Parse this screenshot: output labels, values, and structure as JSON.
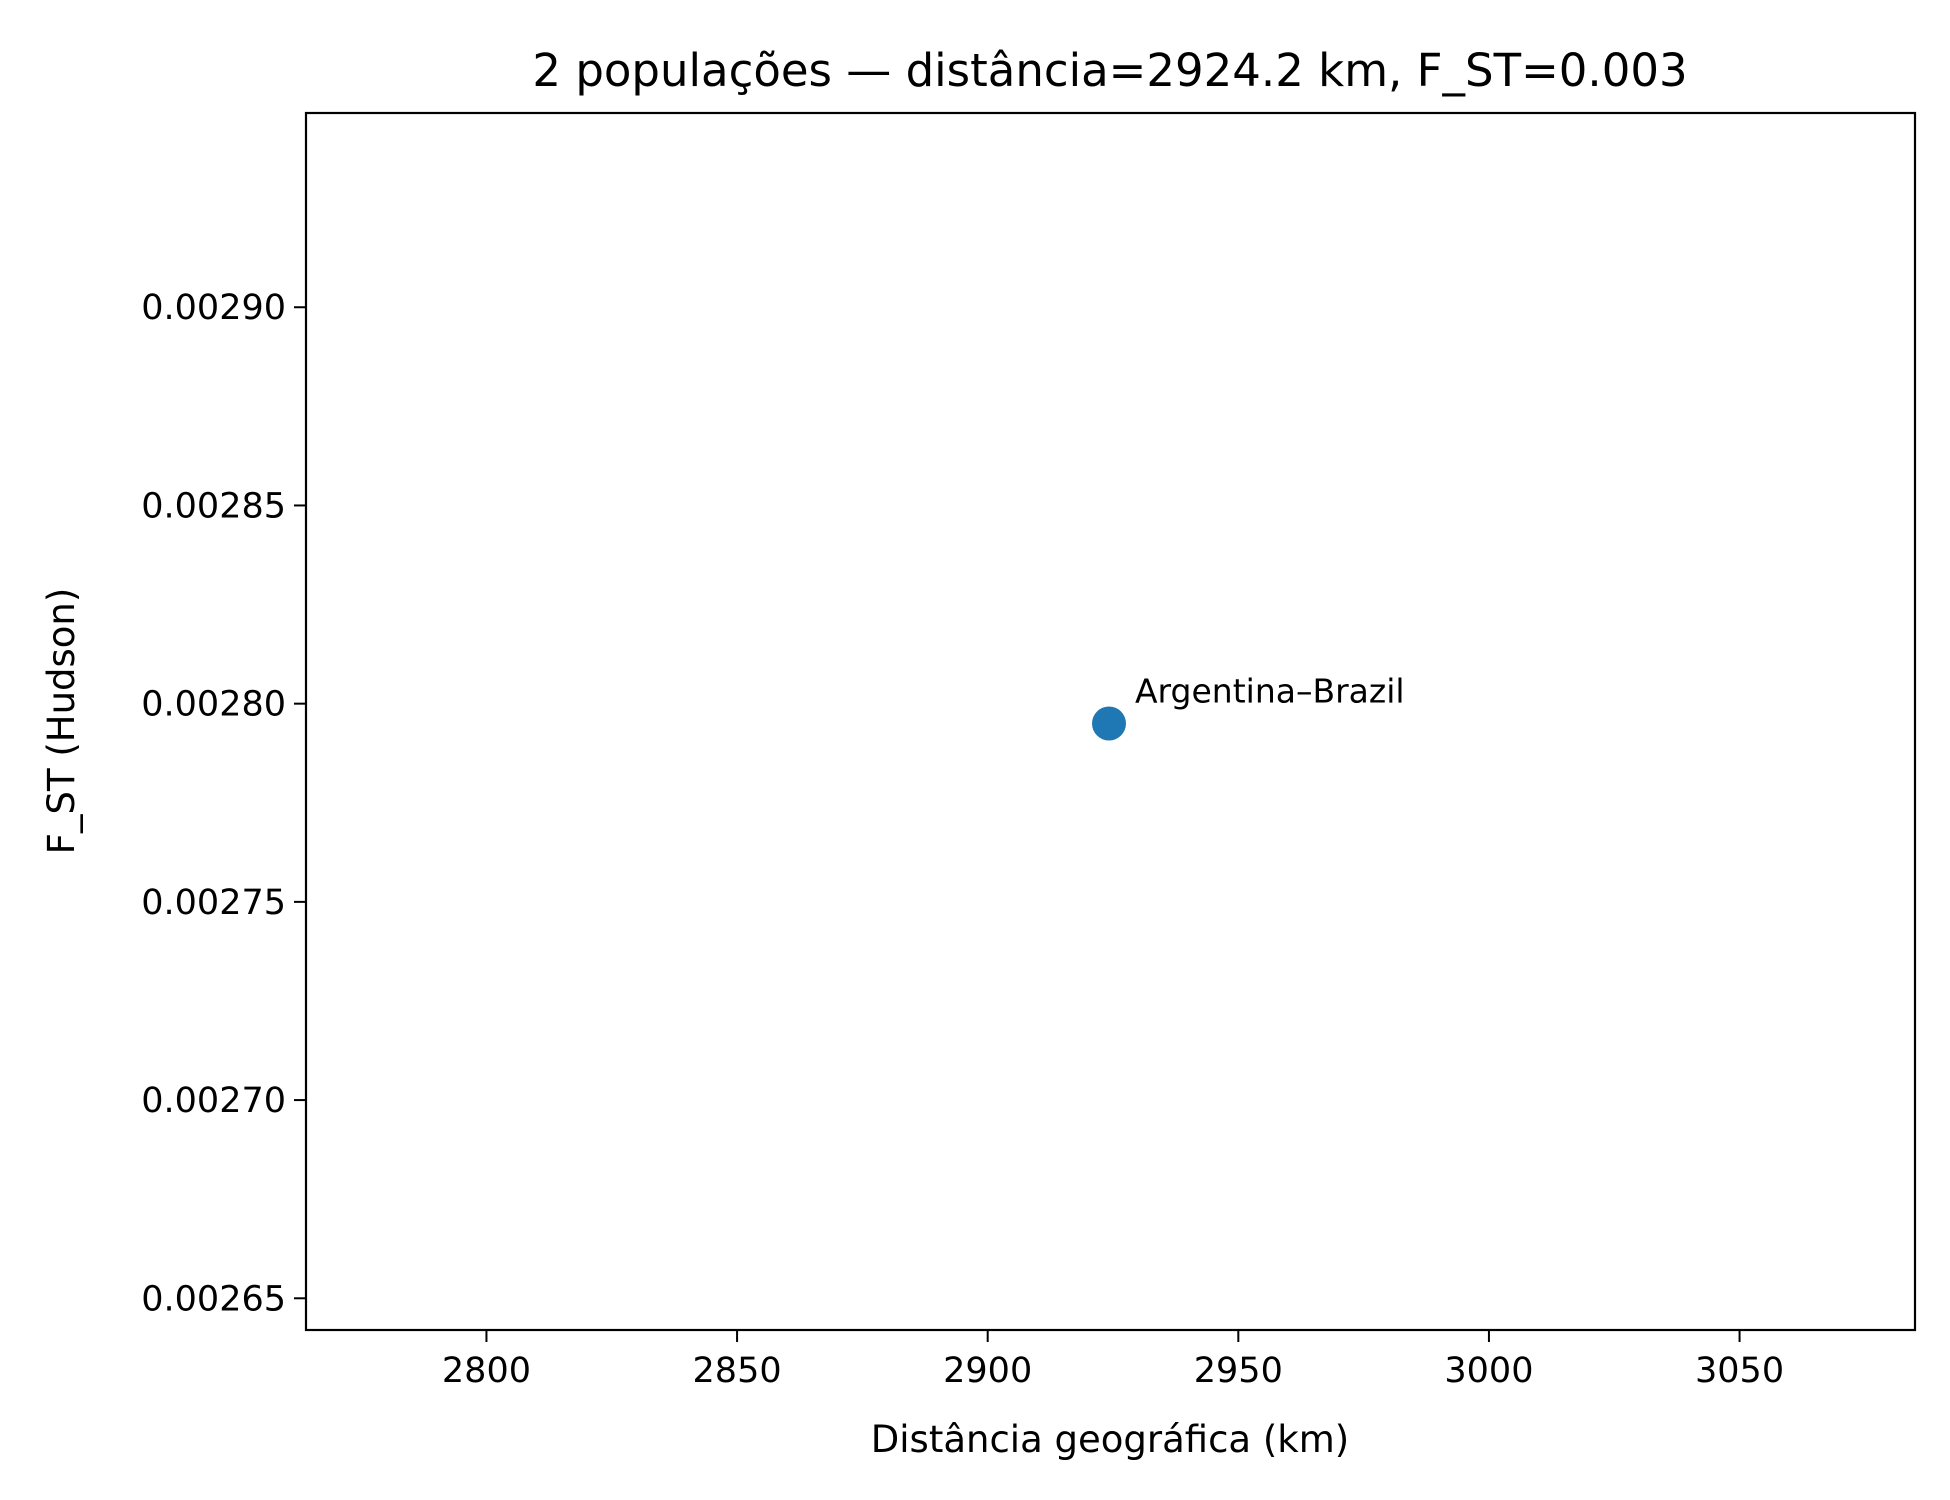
{
  "chart_data": {
    "type": "scatter",
    "title": "2 populações — distância=2924.2 km, F_ST=0.003",
    "xlabel": "Distância geográfica (km)",
    "ylabel": "F_ST (Hudson)",
    "xlim": [
      2764,
      3085
    ],
    "ylim": [
      0.002642,
      0.002949
    ],
    "xticks": [
      2800,
      2850,
      2900,
      2950,
      3000,
      3050
    ],
    "yticks": [
      0.00265,
      0.0027,
      0.00275,
      0.0028,
      0.00285,
      0.0029
    ],
    "xtick_labels": [
      "2800",
      "2850",
      "2900",
      "2950",
      "3000",
      "3050"
    ],
    "ytick_labels": [
      "0.00265",
      "0.00270",
      "0.00275",
      "0.00280",
      "0.00285",
      "0.00290"
    ],
    "grid": false,
    "points": [
      {
        "x": 2924.2,
        "y": 0.002795,
        "label": "Argentina–Brazil"
      }
    ],
    "point_color": "#1f77b4"
  }
}
